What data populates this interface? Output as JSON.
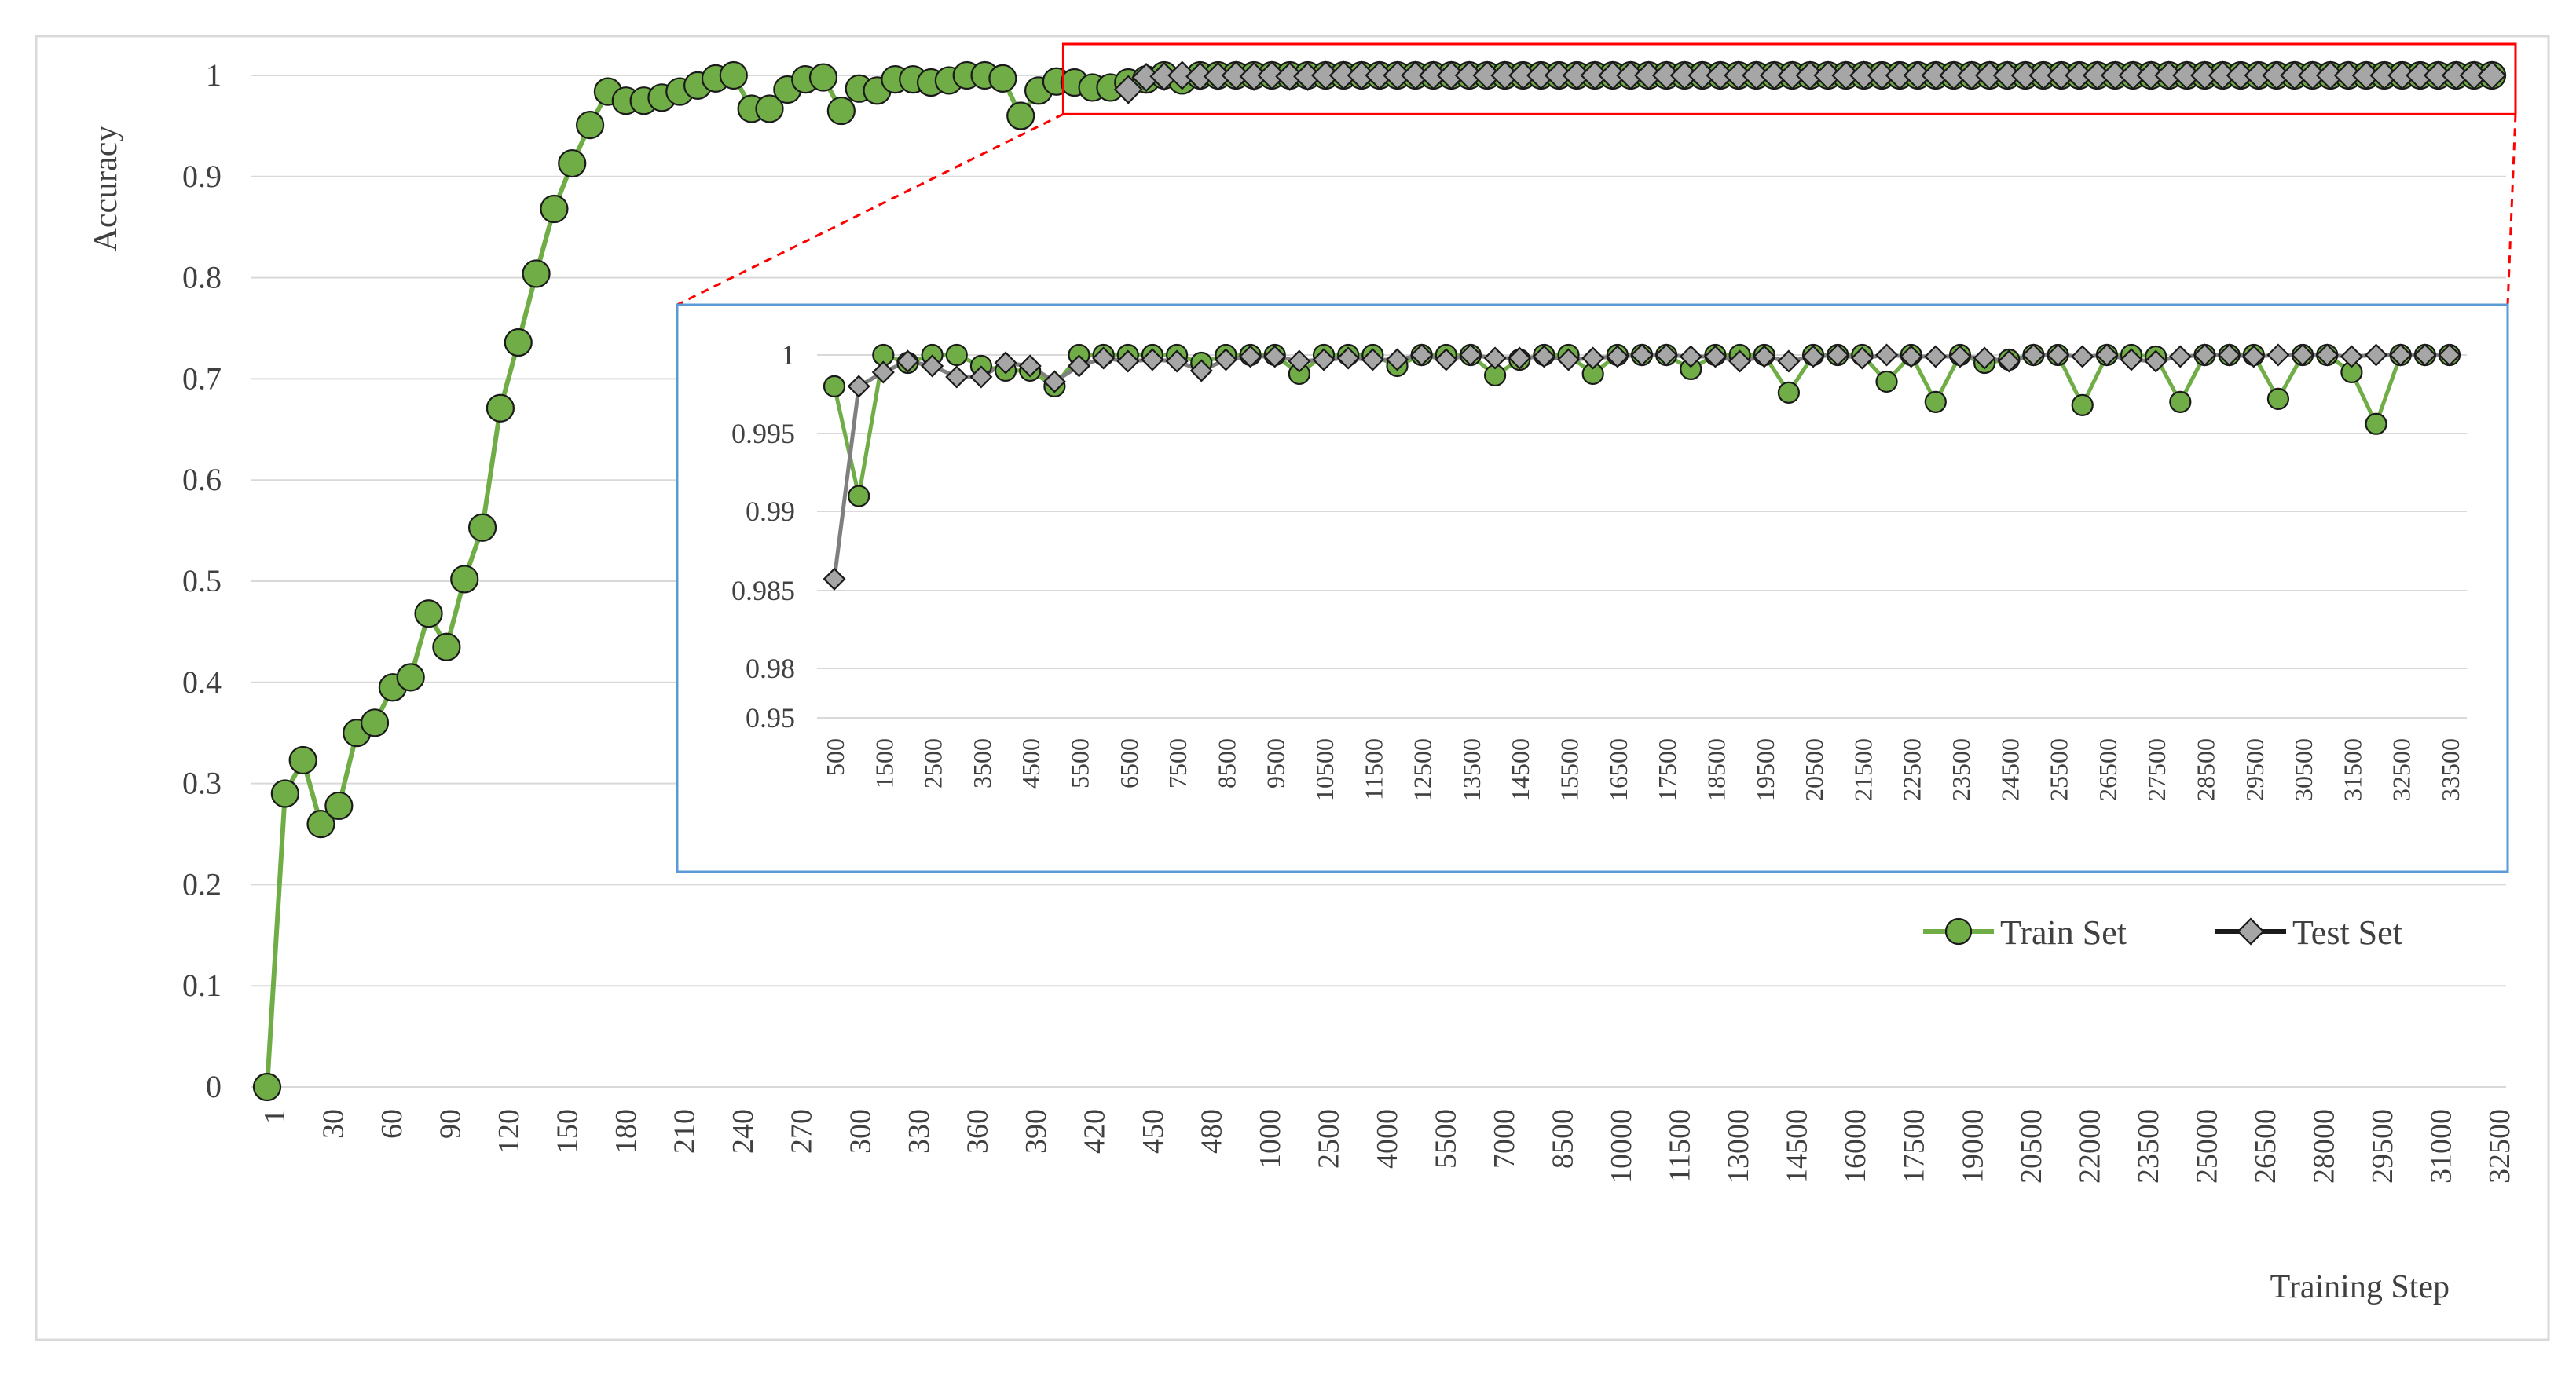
{
  "chart_data": [
    {
      "id": "main",
      "type": "line",
      "ylabel": "Accuracy",
      "xlabel": "Training  Step",
      "ylim": [
        0,
        1
      ],
      "y_ticks": [
        "0",
        "0.1",
        "0.2",
        "0.3",
        "0.4",
        "0.5",
        "0.6",
        "0.7",
        "0.8",
        "0.9",
        "1"
      ],
      "grid": true,
      "x_tick_labels": [
        "1",
        "30",
        "60",
        "90",
        "120",
        "150",
        "180",
        "210",
        "240",
        "270",
        "300",
        "330",
        "360",
        "390",
        "420",
        "450",
        "480",
        "1000",
        "2500",
        "4000",
        "5500",
        "7000",
        "8500",
        "10000",
        "11500",
        "13000",
        "14500",
        "16000",
        "17500",
        "19000",
        "20500",
        "22000",
        "23500",
        "25000",
        "26500",
        "28000",
        "29500",
        "31000",
        "32500"
      ],
      "series": [
        {
          "name": "Train Set",
          "color": "#70ad47",
          "marker": "circle",
          "values": [
            0,
            0.29,
            0.323,
            0.26,
            0.278,
            0.35,
            0.36,
            0.395,
            0.405,
            0.468,
            0.435,
            0.502,
            0.553,
            0.671,
            0.736,
            0.804,
            0.868,
            0.913,
            0.951,
            0.984,
            0.975,
            0.975,
            0.978,
            0.984,
            0.99,
            0.997,
            1.0,
            0.967,
            0.967,
            0.986,
            0.996,
            0.998,
            0.965,
            0.987,
            0.985,
            0.996,
            0.996,
            0.993,
            0.995,
            1.0,
            1.0,
            0.997,
            0.96,
            0.985,
            0.994,
            0.993,
            0.988,
            0.988,
            0.993,
            0.996,
            1.0,
            0.995,
            1.0,
            1.0,
            1.0,
            1.0,
            1.0,
            1.0,
            1.0,
            1.0,
            1.0,
            1.0,
            1.0,
            1.0,
            1.0,
            1.0,
            1.0,
            1.0,
            1.0,
            1.0,
            1.0,
            1.0,
            1.0,
            1.0,
            1.0,
            1.0,
            1.0,
            1.0,
            1.0,
            1.0,
            1.0,
            1.0,
            1.0,
            1.0,
            1.0,
            1.0,
            1.0,
            1.0,
            1.0,
            1.0,
            1.0,
            1.0,
            1.0,
            1.0,
            1.0,
            1.0,
            1.0,
            1.0,
            1.0,
            1.0,
            1.0,
            1.0,
            1.0,
            1.0,
            1.0,
            1.0,
            1.0,
            1.0,
            1.0,
            1.0,
            1.0,
            1.0,
            1.0,
            1.0,
            1.0,
            1.0,
            1.0,
            1.0,
            1.0,
            1.0,
            1.0,
            1.0,
            1.0,
            1.0,
            1.0
          ]
        },
        {
          "name": "Test Set",
          "color": "#7f7f7f",
          "marker": "diamond",
          "values": [
            null,
            null,
            null,
            null,
            null,
            null,
            null,
            null,
            null,
            null,
            null,
            null,
            null,
            null,
            null,
            null,
            null,
            null,
            null,
            null,
            null,
            null,
            null,
            null,
            null,
            null,
            null,
            null,
            null,
            null,
            null,
            null,
            null,
            null,
            null,
            null,
            null,
            null,
            null,
            null,
            null,
            null,
            null,
            null,
            null,
            null,
            null,
            null,
            0.986,
            0.998,
            0.999,
            1.0,
            0.999,
            0.999,
            1.0,
            0.999,
            1.0,
            0.999,
            0.999,
            1.0,
            1.0,
            1.0,
            1.0,
            1.0,
            1.0,
            1.0,
            1.0,
            1.0,
            1.0,
            1.0,
            1.0,
            1.0,
            1.0,
            1.0,
            1.0,
            1.0,
            1.0,
            1.0,
            1.0,
            1.0,
            1.0,
            1.0,
            1.0,
            1.0,
            1.0,
            1.0,
            1.0,
            1.0,
            1.0,
            1.0,
            1.0,
            1.0,
            1.0,
            1.0,
            1.0,
            1.0,
            1.0,
            1.0,
            1.0,
            1.0,
            1.0,
            1.0,
            1.0,
            1.0,
            1.0,
            1.0,
            1.0,
            1.0,
            1.0,
            1.0,
            1.0,
            1.0,
            1.0,
            1.0,
            1.0,
            1.0,
            1.0,
            1.0,
            1.0,
            1.0,
            1.0,
            1.0,
            1.0,
            1.0,
            1.0
          ]
        }
      ],
      "legend": {
        "position": "bottom-right",
        "entries": [
          "Train Set",
          "Test Set"
        ]
      },
      "zoom_box": {
        "x_range": [
          47,
          124
        ],
        "y_range": [
          0.985,
          1.0
        ],
        "color": "#ff0000"
      }
    },
    {
      "id": "inset",
      "type": "line",
      "x_tick_labels": [
        "500",
        "1500",
        "2500",
        "3500",
        "4500",
        "5500",
        "6500",
        "7500",
        "8500",
        "9500",
        "10500",
        "11500",
        "12500",
        "13500",
        "14500",
        "15500",
        "16500",
        "17500",
        "18500",
        "19500",
        "20500",
        "21500",
        "22500",
        "23500",
        "24500",
        "25500",
        "26500",
        "27500",
        "28500",
        "29500",
        "30500",
        "31500",
        "32500",
        "33500"
      ],
      "y_ticks": [
        "0.95",
        "0.98",
        "0.985",
        "0.99",
        "0.995",
        "1"
      ],
      "border_color": "#5b9bd5",
      "series": [
        {
          "name": "Train Set",
          "color": "#70ad47",
          "marker": "circle",
          "x": [
            500,
            1000,
            1500,
            2000,
            2500,
            3000,
            3500,
            4000,
            4500,
            5000,
            5500,
            6000,
            6500,
            7000,
            7500,
            8000,
            8500,
            9000,
            9500,
            10000,
            10500,
            11000,
            11500,
            12000,
            12500,
            13000,
            13500,
            14000,
            14500,
            15000,
            15500,
            16000,
            16500,
            17000,
            17500,
            18000,
            18500,
            19000,
            19500,
            20000,
            20500,
            21000,
            21500,
            22000,
            22500,
            23000,
            23500,
            24000,
            24500,
            25000,
            25500,
            26000,
            26500,
            27000,
            27500,
            28000,
            28500,
            29000,
            29500,
            30000,
            30500,
            31000,
            31500,
            32000,
            32500,
            33000,
            33500
          ],
          "values": [
            0.998,
            0.991,
            1.0,
            0.9995,
            1.0,
            1.0,
            0.9993,
            0.999,
            0.999,
            0.998,
            1.0,
            1.0,
            1.0,
            1.0,
            1.0,
            0.9995,
            1.0,
            1.0,
            1.0,
            0.9988,
            1.0,
            1.0,
            1.0,
            0.9993,
            1.0,
            1.0,
            1.0,
            0.9987,
            0.9997,
            1.0,
            1.0,
            0.9988,
            1.0,
            1.0,
            1.0,
            0.9991,
            1.0,
            1.0,
            1.0,
            0.9976,
            1.0,
            1.0,
            1.0,
            0.9983,
            1.0,
            0.997,
            1.0,
            0.9995,
            0.9997,
            1.0,
            1.0,
            0.9968,
            1.0,
            1.0,
            0.9999,
            0.997,
            1.0,
            1.0,
            1.0,
            0.9972,
            1.0,
            1.0,
            0.9989,
            0.9956,
            1.0,
            1.0,
            1.0
          ]
        },
        {
          "name": "Test Set",
          "color": "#7f7f7f",
          "marker": "diamond",
          "x": [
            500,
            1000,
            1500,
            2000,
            2500,
            3000,
            3500,
            4000,
            4500,
            5000,
            5500,
            6000,
            6500,
            7000,
            7500,
            8000,
            8500,
            9000,
            9500,
            10000,
            10500,
            11000,
            11500,
            12000,
            12500,
            13000,
            13500,
            14000,
            14500,
            15000,
            15500,
            16000,
            16500,
            17000,
            17500,
            18000,
            18500,
            19000,
            19500,
            20000,
            20500,
            21000,
            21500,
            22000,
            22500,
            23000,
            23500,
            24000,
            24500,
            25000,
            25500,
            26000,
            26500,
            27000,
            27500,
            28000,
            28500,
            29000,
            29500,
            30000,
            30500,
            31000,
            31500,
            32000,
            32500,
            33000,
            33500
          ],
          "values": [
            0.9857,
            0.998,
            0.9989,
            0.9996,
            0.9993,
            0.9986,
            0.9986,
            0.9995,
            0.9993,
            0.9983,
            0.9993,
            0.9998,
            0.9996,
            0.9997,
            0.9996,
            0.999,
            0.9997,
            0.9999,
            0.9999,
            0.9996,
            0.9997,
            0.9998,
            0.9997,
            0.9997,
            1.0,
            0.9997,
            1.0,
            0.9998,
            0.9998,
            0.9999,
            0.9997,
            0.9998,
            0.9999,
            1.0,
            1.0,
            0.9999,
            0.9999,
            0.9996,
            0.9999,
            0.9996,
            0.9999,
            1.0,
            0.9998,
            1.0,
            0.9999,
            0.9999,
            0.9999,
            0.9998,
            0.9996,
            1.0,
            1.0,
            0.9999,
            1.0,
            0.9997,
            0.9996,
            0.9999,
            1.0,
            1.0,
            0.9999,
            1.0,
            1.0,
            1.0,
            0.9999,
            1.0,
            1.0,
            1.0,
            1.0
          ]
        }
      ]
    }
  ]
}
